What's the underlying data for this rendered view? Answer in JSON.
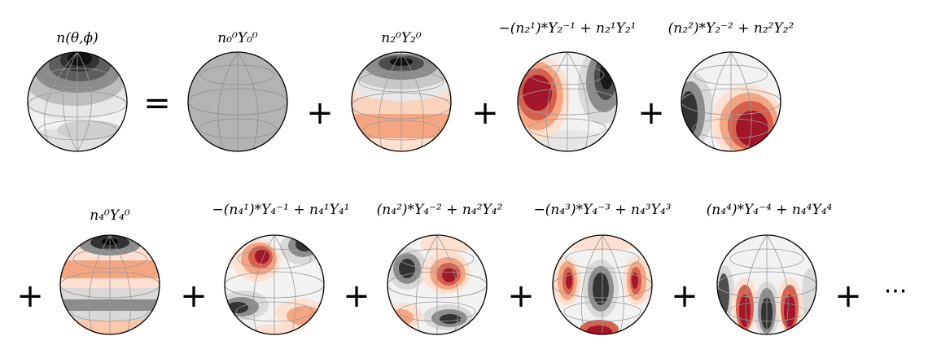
{
  "title_row1": {
    "density": "n(θ,ϕ)",
    "term_00": "n₀⁰Y₀⁰",
    "term_20": "n₂⁰Y₂⁰",
    "term_21": "−(n₂¹)*Y₂⁻¹ + n₂¹Y₂¹",
    "term_22": "(n₂²)*Y₂⁻² + n₂²Y₂²"
  },
  "title_row2": {
    "term_40": "n₄⁰Y₄⁰",
    "term_41": "−(n₄¹)*Y₄⁻¹ + n₄¹Y₄¹",
    "term_42": "(n₄²)*Y₄⁻² + n₄²Y₄²",
    "term_43": "−(n₄³)*Y₄⁻³ + n₄³Y₄³",
    "term_44": "(n₄⁴)*Y₄⁻⁴ + n₄⁴Y₄⁴"
  },
  "operators": {
    "equals": "=",
    "plus": "+",
    "ellipsis": "···"
  },
  "colors": {
    "dark_red": "#a11628",
    "mid_red": "#d6604d",
    "light_red": "#f4a582",
    "pale_red": "#fde0d0",
    "dark_gray": "#1a1a1a",
    "mid_gray": "#4d4d4d",
    "light_gray": "#8c8c8c",
    "pale_gray": "#d9d9d9",
    "uniform_gray": "#b3b3b3"
  }
}
